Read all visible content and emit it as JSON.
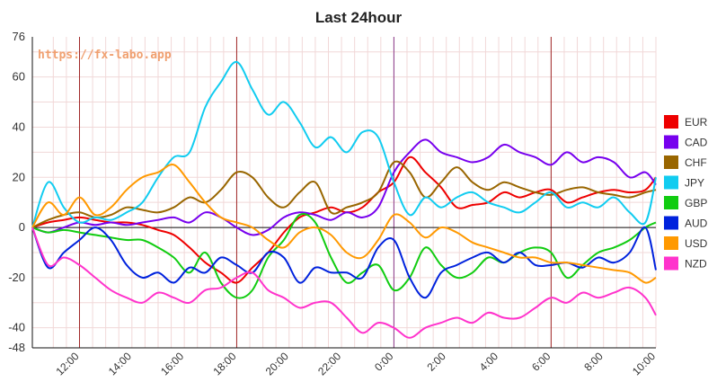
{
  "chart_data": {
    "type": "line",
    "title": "Last 24hour",
    "watermark": "https://fx-labo.app",
    "xlabel": "",
    "ylabel": "",
    "ylim": [
      -48,
      76
    ],
    "yticks": [
      76,
      60,
      40,
      20,
      0,
      -20,
      -40,
      -48
    ],
    "x_range_hours": [
      10.2,
      34.0
    ],
    "xticks": [
      {
        "label": "12:00",
        "hour": 12
      },
      {
        "label": "14:00",
        "hour": 14
      },
      {
        "label": "16:00",
        "hour": 16
      },
      {
        "label": "18:00",
        "hour": 18
      },
      {
        "label": "20:00",
        "hour": 20
      },
      {
        "label": "22:00",
        "hour": 22
      },
      {
        "label": "0:00",
        "hour": 24
      },
      {
        "label": "2:00",
        "hour": 26
      },
      {
        "label": "4:00",
        "hour": 28
      },
      {
        "label": "6:00",
        "hour": 30
      },
      {
        "label": "8:00",
        "hour": 32
      },
      {
        "label": "10:00",
        "hour": 34
      }
    ],
    "grid": true,
    "zero_line": true,
    "session_markers": [
      {
        "hour": 12,
        "color": "#a02828"
      },
      {
        "hour": 18,
        "color": "#a02828"
      },
      {
        "hour": 24,
        "color": "#8a3a8a"
      },
      {
        "hour": 30,
        "color": "#a02828"
      }
    ],
    "legend_position": "right",
    "series": [
      {
        "name": "EUR",
        "color": "#ee0000",
        "x": [
          10.2,
          10.8,
          11.4,
          12,
          12.6,
          13.2,
          13.8,
          14.4,
          15,
          15.6,
          16.2,
          16.8,
          17.4,
          18,
          18.6,
          19.2,
          19.8,
          20.4,
          21,
          21.6,
          22.2,
          22.8,
          23.4,
          24,
          24.6,
          25.2,
          25.8,
          26.4,
          27,
          27.6,
          28.2,
          28.8,
          29.4,
          30,
          30.6,
          31.2,
          31.8,
          32.4,
          33,
          33.6,
          34
        ],
        "values": [
          0,
          2,
          3,
          4,
          3,
          2,
          2,
          1,
          -1,
          -3,
          -8,
          -14,
          -18,
          -22,
          -16,
          -10,
          -2,
          4,
          6,
          8,
          6,
          8,
          14,
          18,
          28,
          22,
          16,
          8,
          9,
          10,
          14,
          12,
          14,
          15,
          10,
          12,
          14,
          15,
          14,
          15,
          20
        ]
      },
      {
        "name": "CAD",
        "color": "#7700ee",
        "x": [
          10.2,
          10.8,
          11.4,
          12,
          12.6,
          13.2,
          13.8,
          14.4,
          15,
          15.6,
          16.2,
          16.8,
          17.4,
          18,
          18.6,
          19.2,
          19.8,
          20.4,
          21,
          21.6,
          22.2,
          22.8,
          23.4,
          24,
          24.6,
          25.2,
          25.8,
          26.4,
          27,
          27.6,
          28.2,
          28.8,
          29.4,
          30,
          30.6,
          31.2,
          31.8,
          32.4,
          33,
          33.6,
          34
        ],
        "values": [
          0,
          -2,
          0,
          2,
          1,
          2,
          1,
          2,
          3,
          4,
          2,
          6,
          4,
          0,
          -3,
          -1,
          4,
          6,
          5,
          3,
          6,
          4,
          8,
          22,
          30,
          35,
          30,
          28,
          26,
          28,
          33,
          30,
          28,
          25,
          30,
          26,
          28,
          26,
          20,
          22,
          17
        ]
      },
      {
        "name": "CHF",
        "color": "#996600",
        "x": [
          10.2,
          10.8,
          11.4,
          12,
          12.6,
          13.2,
          13.8,
          14.4,
          15,
          15.6,
          16.2,
          16.8,
          17.4,
          18,
          18.6,
          19.2,
          19.8,
          20.4,
          21,
          21.6,
          22.2,
          22.8,
          23.4,
          24,
          24.6,
          25.2,
          25.8,
          26.4,
          27,
          27.6,
          28.2,
          28.8,
          29.4,
          30,
          30.6,
          31.2,
          31.8,
          32.4,
          33,
          33.6,
          34
        ],
        "values": [
          0,
          3,
          5,
          6,
          4,
          5,
          8,
          7,
          6,
          8,
          12,
          10,
          15,
          22,
          20,
          12,
          8,
          14,
          18,
          6,
          8,
          10,
          14,
          26,
          22,
          12,
          18,
          24,
          18,
          15,
          18,
          16,
          14,
          13,
          15,
          16,
          14,
          13,
          12,
          14,
          15
        ]
      },
      {
        "name": "JPY",
        "color": "#11ccf0",
        "x": [
          10.2,
          10.8,
          11.4,
          12,
          12.6,
          13.2,
          13.8,
          14.4,
          15,
          15.6,
          16.2,
          16.8,
          17.4,
          18,
          18.6,
          19.2,
          19.8,
          20.4,
          21,
          21.6,
          22.2,
          22.8,
          23.4,
          24,
          24.6,
          25.2,
          25.8,
          26.4,
          27,
          27.6,
          28.2,
          28.8,
          29.4,
          30,
          30.6,
          31.2,
          31.8,
          32.4,
          33,
          33.6,
          34
        ],
        "values": [
          0,
          18,
          8,
          2,
          4,
          3,
          6,
          10,
          20,
          28,
          30,
          48,
          58,
          66,
          55,
          45,
          50,
          42,
          32,
          36,
          30,
          38,
          36,
          18,
          5,
          12,
          8,
          12,
          14,
          10,
          8,
          6,
          10,
          14,
          8,
          10,
          8,
          12,
          6,
          2,
          20
        ]
      },
      {
        "name": "GBP",
        "color": "#11cc11",
        "x": [
          10.2,
          10.8,
          11.4,
          12,
          12.6,
          13.2,
          13.8,
          14.4,
          15,
          15.6,
          16.2,
          16.8,
          17.4,
          18,
          18.6,
          19.2,
          19.8,
          20.4,
          21,
          21.6,
          22.2,
          22.8,
          23.4,
          24,
          24.6,
          25.2,
          25.8,
          26.4,
          27,
          27.6,
          28.2,
          28.8,
          29.4,
          30,
          30.6,
          31.2,
          31.8,
          32.4,
          33,
          33.6,
          34
        ],
        "values": [
          0,
          -2,
          -1,
          -2,
          -3,
          -4,
          -5,
          -5,
          -8,
          -12,
          -18,
          -10,
          -22,
          -28,
          -25,
          -12,
          -5,
          5,
          2,
          -12,
          -22,
          -18,
          -15,
          -25,
          -20,
          -8,
          -15,
          -20,
          -18,
          -12,
          -14,
          -10,
          -8,
          -10,
          -20,
          -15,
          -10,
          -8,
          -5,
          0,
          2
        ]
      },
      {
        "name": "AUD",
        "color": "#0022dd",
        "x": [
          10.2,
          10.8,
          11.4,
          12,
          12.6,
          13.2,
          13.8,
          14.4,
          15,
          15.6,
          16.2,
          16.8,
          17.4,
          18,
          18.6,
          19.2,
          19.8,
          20.4,
          21,
          21.6,
          22.2,
          22.8,
          23.4,
          24,
          24.6,
          25.2,
          25.8,
          26.4,
          27,
          27.6,
          28.2,
          28.8,
          29.4,
          30,
          30.6,
          31.2,
          31.8,
          32.4,
          33,
          33.6,
          34
        ],
        "values": [
          0,
          -16,
          -10,
          -5,
          0,
          -5,
          -15,
          -20,
          -18,
          -22,
          -16,
          -18,
          -12,
          -15,
          -18,
          -10,
          -12,
          -22,
          -16,
          -18,
          -18,
          -20,
          -8,
          -5,
          -20,
          -28,
          -18,
          -15,
          -12,
          -10,
          -14,
          -10,
          -15,
          -15,
          -14,
          -16,
          -12,
          -14,
          -10,
          0,
          -17
        ]
      },
      {
        "name": "USD",
        "color": "#ff9900",
        "x": [
          10.2,
          10.8,
          11.4,
          12,
          12.6,
          13.2,
          13.8,
          14.4,
          15,
          15.6,
          16.2,
          16.8,
          17.4,
          18,
          18.6,
          19.2,
          19.8,
          20.4,
          21,
          21.6,
          22.2,
          22.8,
          23.4,
          24,
          24.6,
          25.2,
          25.8,
          26.4,
          27,
          27.6,
          28.2,
          28.8,
          29.4,
          30,
          30.6,
          31.2,
          31.8,
          32.4,
          33,
          33.6,
          34
        ],
        "values": [
          0,
          10,
          5,
          12,
          5,
          8,
          15,
          20,
          22,
          25,
          18,
          10,
          4,
          2,
          0,
          -5,
          -8,
          -2,
          0,
          -3,
          -10,
          -12,
          -5,
          5,
          2,
          -4,
          0,
          -2,
          -6,
          -8,
          -10,
          -12,
          -12,
          -14,
          -14,
          -15,
          -16,
          -17,
          -18,
          -22,
          -20
        ]
      },
      {
        "name": "NZD",
        "color": "#ff33cc",
        "x": [
          10.2,
          10.8,
          11.4,
          12,
          12.6,
          13.2,
          13.8,
          14.4,
          15,
          15.6,
          16.2,
          16.8,
          17.4,
          18,
          18.6,
          19.2,
          19.8,
          20.4,
          21,
          21.6,
          22.2,
          22.8,
          23.4,
          24,
          24.6,
          25.2,
          25.8,
          26.4,
          27,
          27.6,
          28.2,
          28.8,
          29.4,
          30,
          30.6,
          31.2,
          31.8,
          32.4,
          33,
          33.6,
          34
        ],
        "values": [
          0,
          -15,
          -12,
          -15,
          -20,
          -25,
          -28,
          -30,
          -26,
          -28,
          -30,
          -25,
          -24,
          -20,
          -18,
          -25,
          -28,
          -32,
          -30,
          -30,
          -36,
          -42,
          -38,
          -40,
          -44,
          -40,
          -38,
          -36,
          -38,
          -34,
          -36,
          -36,
          -32,
          -28,
          -30,
          -26,
          -28,
          -26,
          -24,
          -28,
          -35
        ]
      }
    ]
  }
}
